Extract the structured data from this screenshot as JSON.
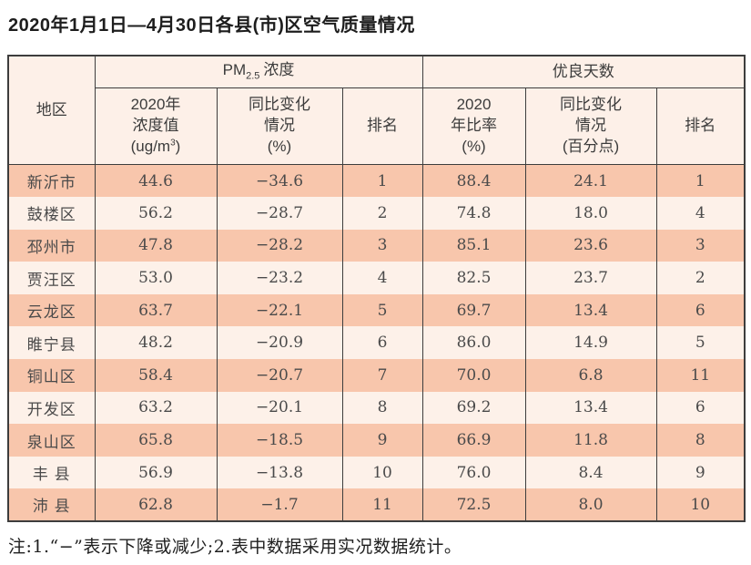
{
  "title": "2020年1月1日—4月30日各县(市)区空气质量情况",
  "footnote": "注:1.“−”表示下降或减少;2.表中数据采用实况数据统计。",
  "table": {
    "corner_header": "地区",
    "pm_group": {
      "base": "PM",
      "sub": "2.5",
      "suffix": "浓度"
    },
    "days_group_label": "优良天数",
    "sub_headers": {
      "pm_value_l1": "2020年",
      "pm_value_l2": "浓度值",
      "pm_unit_prefix": "(ug/m",
      "pm_unit_sup": "3",
      "pm_unit_suffix": ")",
      "pm_change_l1": "同比变化",
      "pm_change_l2": "情况",
      "pm_change_unit": "(%)",
      "pm_rank": "排名",
      "days_rate_l1": "2020",
      "days_rate_l2": "年比率",
      "days_rate_unit": "(%)",
      "days_change_l1": "同比变化",
      "days_change_l2": "情况",
      "days_change_unit": "(百分点)",
      "days_rank": "排名"
    },
    "rows": [
      {
        "region": "新沂市",
        "pm_value": "44.6",
        "pm_change": "−34.6",
        "pm_rank": "1",
        "days_rate": "88.4",
        "days_change": "24.1",
        "days_rank": "1"
      },
      {
        "region": "鼓楼区",
        "pm_value": "56.2",
        "pm_change": "−28.7",
        "pm_rank": "2",
        "days_rate": "74.8",
        "days_change": "18.0",
        "days_rank": "4"
      },
      {
        "region": "邳州市",
        "pm_value": "47.8",
        "pm_change": "−28.2",
        "pm_rank": "3",
        "days_rate": "85.1",
        "days_change": "23.6",
        "days_rank": "3"
      },
      {
        "region": "贾汪区",
        "pm_value": "53.0",
        "pm_change": "−23.2",
        "pm_rank": "4",
        "days_rate": "82.5",
        "days_change": "23.7",
        "days_rank": "2"
      },
      {
        "region": "云龙区",
        "pm_value": "63.7",
        "pm_change": "−22.1",
        "pm_rank": "5",
        "days_rate": "69.7",
        "days_change": "13.4",
        "days_rank": "6"
      },
      {
        "region": "睢宁县",
        "pm_value": "48.2",
        "pm_change": "−20.9",
        "pm_rank": "6",
        "days_rate": "86.0",
        "days_change": "14.9",
        "days_rank": "5"
      },
      {
        "region": "铜山区",
        "pm_value": "58.4",
        "pm_change": "−20.7",
        "pm_rank": "7",
        "days_rate": "70.0",
        "days_change": "6.8",
        "days_rank": "11"
      },
      {
        "region": "开发区",
        "pm_value": "63.2",
        "pm_change": "−20.1",
        "pm_rank": "8",
        "days_rate": "69.2",
        "days_change": "13.4",
        "days_rank": "6"
      },
      {
        "region": "泉山区",
        "pm_value": "65.8",
        "pm_change": "−18.5",
        "pm_rank": "9",
        "days_rate": "66.9",
        "days_change": "11.8",
        "days_rank": "8"
      },
      {
        "region": "丰 县",
        "pm_value": "56.9",
        "pm_change": "−13.8",
        "pm_rank": "10",
        "days_rate": "76.0",
        "days_change": "8.4",
        "days_rank": "9"
      },
      {
        "region": "沛 县",
        "pm_value": "62.8",
        "pm_change": "−1.7",
        "pm_rank": "11",
        "days_rate": "72.5",
        "days_change": "8.0",
        "days_rank": "10"
      }
    ]
  },
  "chart_data": {
    "type": "table",
    "title": "2020年1月1日—4月30日各县(市)区空气质量情况",
    "columns": [
      "地区",
      "PM2.5浓度 2020年浓度值(ug/m3)",
      "PM2.5浓度 同比变化情况(%)",
      "PM2.5浓度 排名",
      "优良天数 2020年比率(%)",
      "优良天数 同比变化情况(百分点)",
      "优良天数 排名"
    ],
    "rows": [
      [
        "新沂市",
        44.6,
        -34.6,
        1,
        88.4,
        24.1,
        1
      ],
      [
        "鼓楼区",
        56.2,
        -28.7,
        2,
        74.8,
        18.0,
        4
      ],
      [
        "邳州市",
        47.8,
        -28.2,
        3,
        85.1,
        23.6,
        3
      ],
      [
        "贾汪区",
        53.0,
        -23.2,
        4,
        82.5,
        23.7,
        2
      ],
      [
        "云龙区",
        63.7,
        -22.1,
        5,
        69.7,
        13.4,
        6
      ],
      [
        "睢宁县",
        48.2,
        -20.9,
        6,
        86.0,
        14.9,
        5
      ],
      [
        "铜山区",
        58.4,
        -20.7,
        7,
        70.0,
        6.8,
        11
      ],
      [
        "开发区",
        63.2,
        -20.1,
        8,
        69.2,
        13.4,
        6
      ],
      [
        "泉山区",
        65.8,
        -18.5,
        9,
        66.9,
        11.8,
        8
      ],
      [
        "丰县",
        56.9,
        -13.8,
        10,
        76.0,
        8.4,
        9
      ],
      [
        "沛县",
        62.8,
        -1.7,
        11,
        72.5,
        8.0,
        10
      ]
    ]
  }
}
